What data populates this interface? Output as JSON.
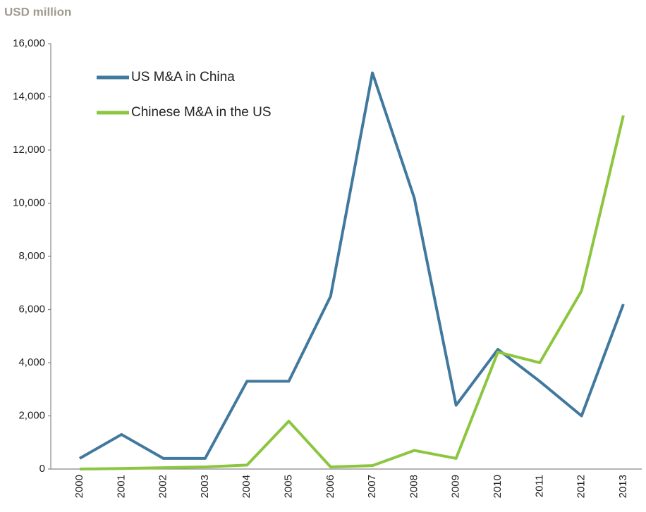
{
  "chart_data": {
    "type": "line",
    "y_axis_label": "USD million",
    "categories": [
      "2000",
      "2001",
      "2002",
      "2003",
      "2004",
      "2005",
      "2006",
      "2007",
      "2008",
      "2009",
      "2010",
      "2011",
      "2012",
      "2013"
    ],
    "series": [
      {
        "name": "US M&A in China",
        "color": "#41799e",
        "values": [
          400,
          1300,
          400,
          400,
          3300,
          3300,
          6500,
          14900,
          10200,
          2400,
          4500,
          3300,
          2000,
          6200
        ]
      },
      {
        "name": "Chinese M&A in the US",
        "color": "#8cc63f",
        "values": [
          0,
          20,
          50,
          80,
          150,
          1800,
          80,
          130,
          700,
          400,
          4400,
          4000,
          6700,
          13300
        ]
      }
    ],
    "ylim": [
      0,
      16000
    ],
    "yticks": [
      0,
      {
        "value": 2000,
        "label": "2,000"
      },
      {
        "value": 4000,
        "label": "4,000"
      },
      {
        "value": 6000,
        "label": "6,000"
      },
      {
        "value": 8000,
        "label": "8,000"
      },
      {
        "value": 10000,
        "label": "10,000"
      },
      {
        "value": 12000,
        "label": "12,000"
      },
      {
        "value": 14000,
        "label": "14,000"
      },
      {
        "value": 16000,
        "label": "16,000"
      }
    ],
    "grid": false,
    "legend": "upper left"
  }
}
